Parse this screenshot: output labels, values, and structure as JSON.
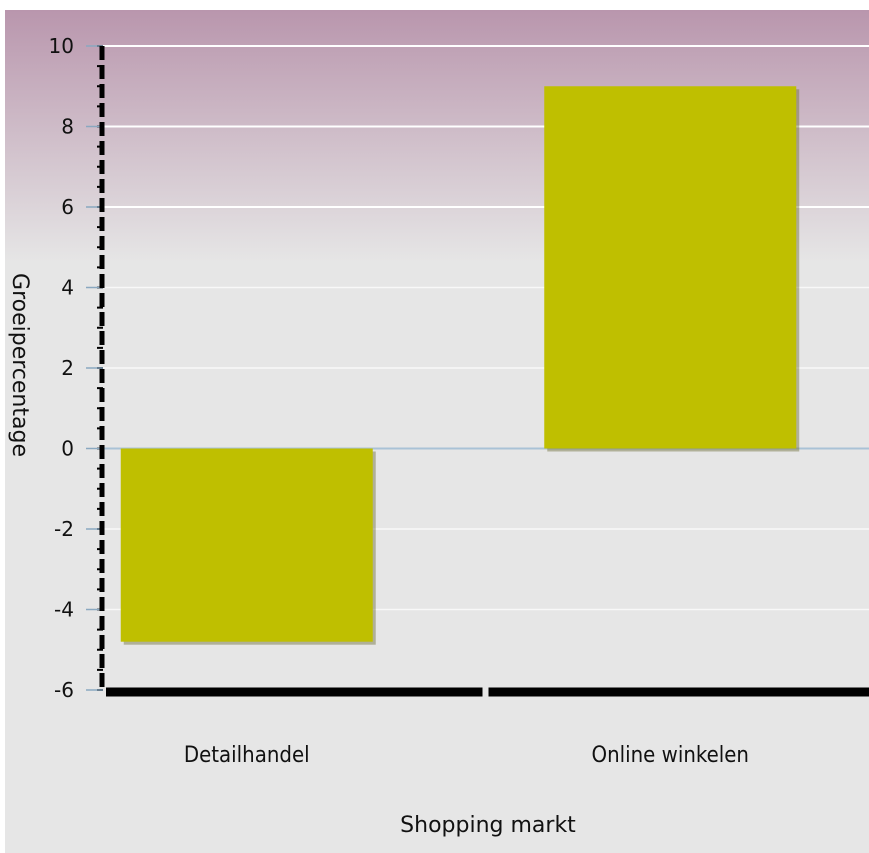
{
  "chart_data": {
    "type": "bar",
    "categories": [
      "Detailhandel",
      "Online winkelen"
    ],
    "values": [
      -4.8,
      9.0
    ],
    "xlabel": "Shopping markt",
    "ylabel": "Groeipercentage",
    "ylim": [
      -6,
      10
    ],
    "yticks": [
      10,
      8,
      6,
      4,
      2,
      0,
      -2,
      -4,
      -6
    ],
    "grid": true,
    "legend": "none"
  },
  "colors": {
    "bar": "#bfbf00",
    "bar_shadow": "#6e6e3a",
    "plot_top": "#b996ad",
    "plot_mid": "#e6e6e6",
    "axis": "#000000",
    "zero_line": "#a9c2d6",
    "grid": "#ffffff"
  }
}
